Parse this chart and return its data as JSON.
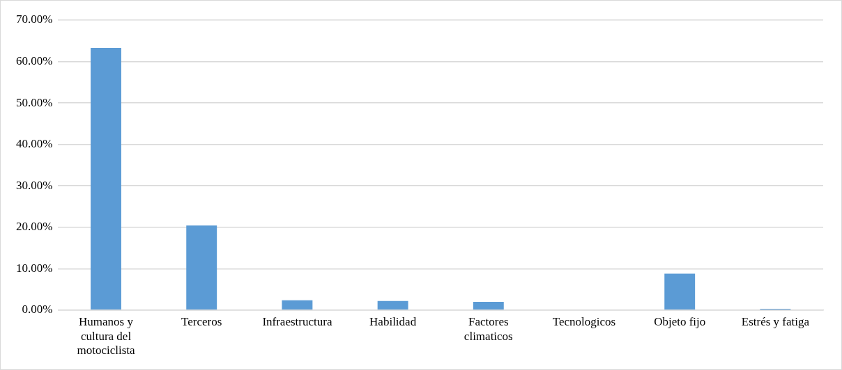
{
  "chart_data": {
    "type": "bar",
    "categories": [
      "Humanos y cultura del motociclista",
      "Terceros",
      "Infraestructura",
      "Habilidad",
      "Factores climaticos",
      "Tecnologicos",
      "Objeto fijo",
      "Estrés y fatiga"
    ],
    "values": [
      63.3,
      20.4,
      2.35,
      2.2,
      2.0,
      0,
      8.8,
      0.3
    ],
    "color": "#5b9bd5",
    "ylim": [
      0,
      70
    ],
    "yticks": [
      {
        "value": 0,
        "label": "0.00%"
      },
      {
        "value": 10,
        "label": "10.00%"
      },
      {
        "value": 20,
        "label": "20.00%"
      },
      {
        "value": 30,
        "label": "30.00%"
      },
      {
        "value": 40,
        "label": "40.00%"
      },
      {
        "value": 50,
        "label": "50.00%"
      },
      {
        "value": 60,
        "label": "60.00%"
      },
      {
        "value": 70,
        "label": "70.00%"
      }
    ],
    "grid": "y"
  }
}
